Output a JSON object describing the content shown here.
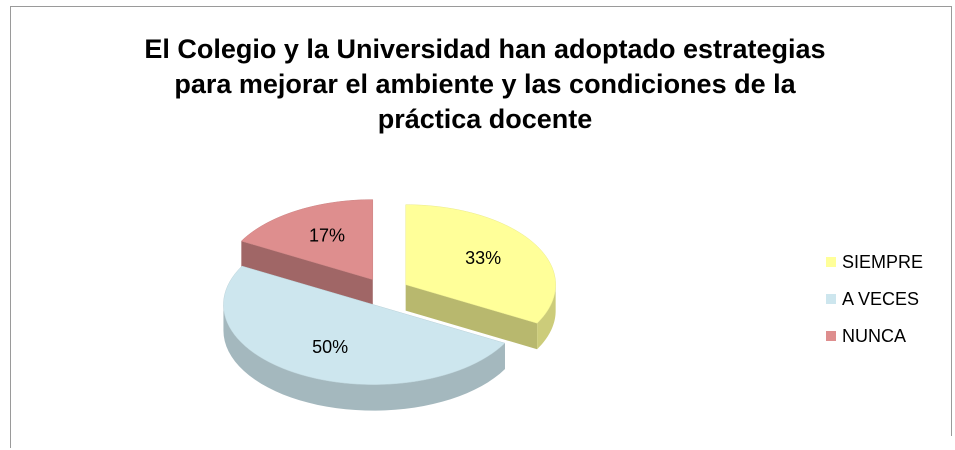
{
  "chart_data": {
    "type": "pie",
    "title": "El Colegio y la Universidad han adoptado estrategias para mejorar el ambiente y las condiciones de la práctica docente",
    "categories": [
      "SIEMPRE",
      "A VECES",
      "NUNCA"
    ],
    "values": [
      33,
      50,
      17
    ],
    "value_labels": [
      "33%",
      "50%",
      "17%"
    ],
    "colors": [
      "#ffff99",
      "#cde6ee",
      "#de8e8e"
    ],
    "legend": "right"
  }
}
